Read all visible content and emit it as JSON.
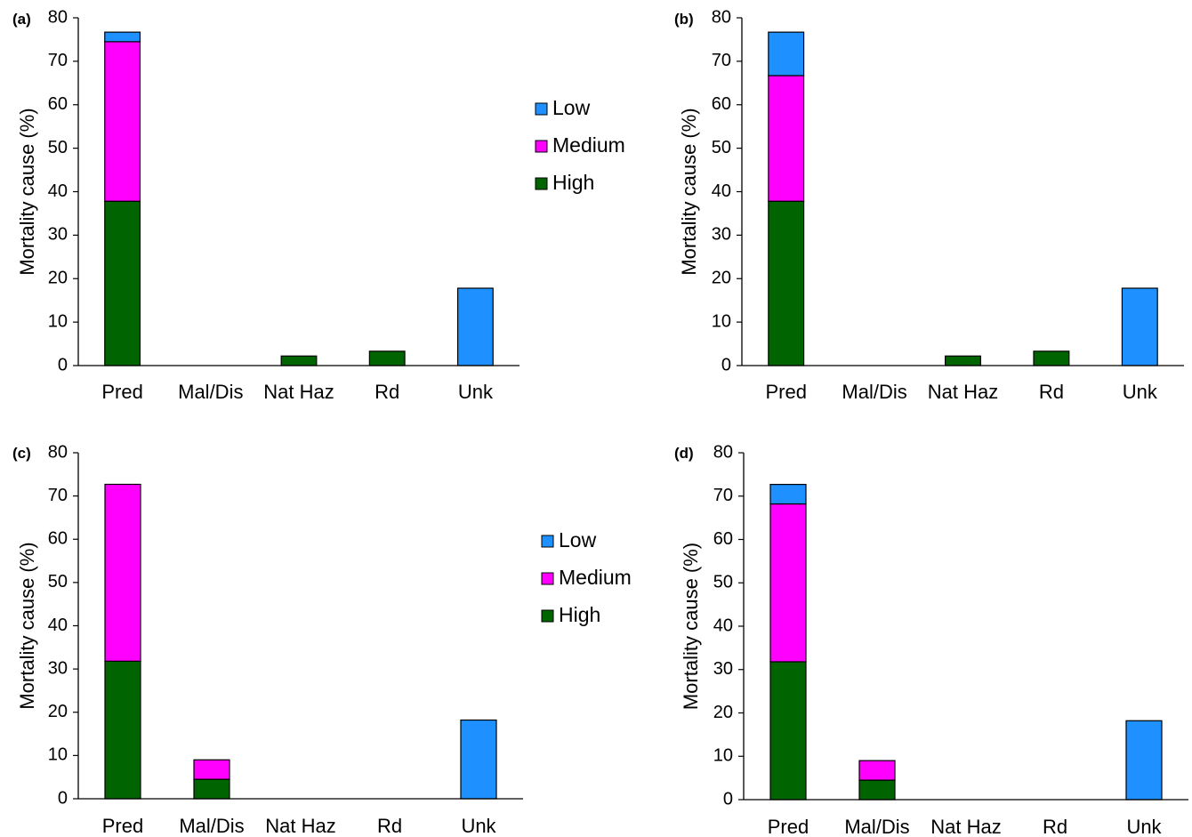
{
  "colors": {
    "Low": "#1e90ff",
    "Medium": "#ff00ff",
    "High": "#006400",
    "outline": "#000000",
    "axis": "#000000"
  },
  "chart_data": [
    {
      "type": "bar",
      "panel_label": "(a)",
      "ylabel": "Mortality cause (%)",
      "ylim": [
        0,
        80
      ],
      "yticks": [
        "0",
        "10",
        "20",
        "30",
        "40",
        "50",
        "60",
        "70",
        "80"
      ],
      "categories": [
        "Pred",
        "Mal/Dis",
        "Nat Haz",
        "Rd",
        "Unk"
      ],
      "stacked": true,
      "series": [
        {
          "name": "High",
          "values": [
            37.8,
            0,
            2.2,
            3.3,
            0
          ]
        },
        {
          "name": "Medium",
          "values": [
            36.7,
            0,
            0,
            0,
            0
          ]
        },
        {
          "name": "Low",
          "values": [
            2.2,
            0,
            0,
            0,
            17.8
          ]
        }
      ],
      "legend": {
        "entries": [
          "Low",
          "Medium",
          "High"
        ],
        "placement": "right"
      },
      "grid": false
    },
    {
      "type": "bar",
      "panel_label": "(b)",
      "ylabel": "Mortality cause (%)",
      "ylim": [
        0,
        80
      ],
      "yticks": [
        "0",
        "10",
        "20",
        "30",
        "40",
        "50",
        "60",
        "70",
        "80"
      ],
      "categories": [
        "Pred",
        "Mal/Dis",
        "Nat Haz",
        "Rd",
        "Unk"
      ],
      "stacked": true,
      "series": [
        {
          "name": "High",
          "values": [
            37.8,
            0,
            2.2,
            3.3,
            0
          ]
        },
        {
          "name": "Medium",
          "values": [
            28.9,
            0,
            0,
            0,
            0
          ]
        },
        {
          "name": "Low",
          "values": [
            10.0,
            0,
            0,
            0,
            17.8
          ]
        }
      ],
      "grid": false
    },
    {
      "type": "bar",
      "panel_label": "(c)",
      "ylabel": "Mortality cause (%)",
      "ylim": [
        0,
        80
      ],
      "yticks": [
        "0",
        "10",
        "20",
        "30",
        "40",
        "50",
        "60",
        "70",
        "80"
      ],
      "categories": [
        "Pred",
        "Mal/Dis",
        "Nat Haz",
        "Rd",
        "Unk"
      ],
      "stacked": true,
      "series": [
        {
          "name": "High",
          "values": [
            31.8,
            4.5,
            0,
            0,
            0
          ]
        },
        {
          "name": "Medium",
          "values": [
            40.9,
            4.5,
            0,
            0,
            0
          ]
        },
        {
          "name": "Low",
          "values": [
            0,
            0,
            0,
            0,
            18.2
          ]
        }
      ],
      "legend": {
        "entries": [
          "Low",
          "Medium",
          "High"
        ],
        "placement": "right"
      },
      "grid": false
    },
    {
      "type": "bar",
      "panel_label": "(d)",
      "ylabel": "Mortality cause (%)",
      "ylim": [
        0,
        80
      ],
      "yticks": [
        "0",
        "10",
        "20",
        "30",
        "40",
        "50",
        "60",
        "70",
        "80"
      ],
      "categories": [
        "Pred",
        "Mal/Dis",
        "Nat Haz",
        "Rd",
        "Unk"
      ],
      "stacked": true,
      "series": [
        {
          "name": "High",
          "values": [
            31.8,
            4.5,
            0,
            0,
            0
          ]
        },
        {
          "name": "Medium",
          "values": [
            36.4,
            4.5,
            0,
            0,
            0
          ]
        },
        {
          "name": "Low",
          "values": [
            4.5,
            0,
            0,
            0,
            18.2
          ]
        }
      ],
      "grid": false
    }
  ]
}
